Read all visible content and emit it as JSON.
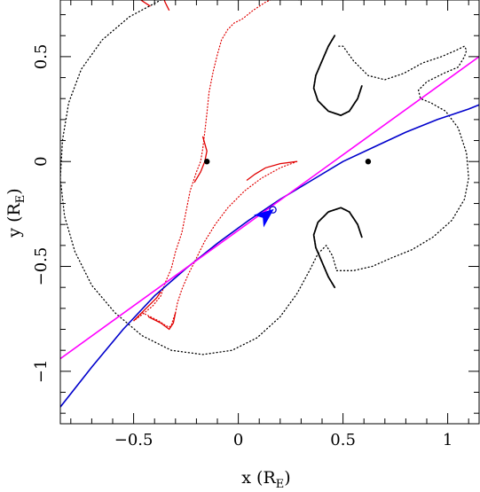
{
  "chart_data": {
    "type": "line",
    "xlabel": "x (R",
    "xlabel_sub": "E",
    "xlabel_close": ")",
    "ylabel": "y (R",
    "ylabel_sub": "E",
    "ylabel_close": ")",
    "xlim": [
      -0.85,
      1.15
    ],
    "ylim": [
      -1.25,
      0.77
    ],
    "xticks": [
      {
        "value": -0.5,
        "label": "−0.5"
      },
      {
        "value": 0,
        "label": "0"
      },
      {
        "value": 0.5,
        "label": "0.5"
      },
      {
        "value": 1,
        "label": "1"
      }
    ],
    "yticks": [
      {
        "value": 0.5,
        "label": "0.5"
      },
      {
        "value": 0,
        "label": "0"
      },
      {
        "value": -0.5,
        "label": "−0.5"
      },
      {
        "value": -1,
        "label": "−1"
      }
    ],
    "minor_x_step": 0.1,
    "minor_y_step": 0.1,
    "grid": false,
    "lenses": [
      {
        "x": -0.15,
        "y": 0.0
      },
      {
        "x": 0.62,
        "y": 0.0
      }
    ],
    "critical_curve": {
      "color": "#000000",
      "style": "dotted",
      "outer_x": [
        0.29,
        0.25,
        0.16,
        0.05,
        -0.08,
        -0.22,
        -0.37,
        -0.52,
        -0.65,
        -0.75,
        -0.81,
        -0.84,
        -0.85,
        -0.83,
        -0.78,
        -0.7,
        -0.59,
        -0.46,
        -0.32,
        -0.17,
        -0.03,
        0.09,
        0.2,
        0.28,
        0.34,
        0.38,
        0.42,
        0.45,
        0.47
      ],
      "outer_y": [
        0.77,
        0.79,
        0.82,
        0.84,
        0.84,
        0.82,
        0.77,
        0.69,
        0.58,
        0.44,
        0.28,
        0.1,
        -0.08,
        -0.26,
        -0.43,
        -0.59,
        -0.72,
        -0.83,
        -0.9,
        -0.92,
        -0.9,
        -0.84,
        -0.74,
        -0.63,
        -0.52,
        -0.44,
        -0.4,
        -0.45,
        -0.52
      ],
      "right_x": [
        0.47,
        0.55,
        0.64,
        0.73,
        0.83,
        0.93,
        1.02,
        1.08,
        1.1,
        1.09,
        1.05,
        0.99,
        0.92,
        0.87,
        0.86,
        0.9,
        0.98,
        1.05,
        1.08,
        1.09,
        1.08,
        1.04,
        0.97,
        0.88,
        0.79,
        0.7,
        0.62,
        0.55,
        0.5,
        0.47
      ],
      "right_y": [
        -0.52,
        -0.52,
        -0.5,
        -0.46,
        -0.42,
        -0.36,
        -0.28,
        -0.18,
        -0.08,
        0.04,
        0.16,
        0.24,
        0.28,
        0.3,
        0.34,
        0.38,
        0.42,
        0.45,
        0.5,
        0.53,
        0.55,
        0.53,
        0.5,
        0.47,
        0.42,
        0.39,
        0.41,
        0.48,
        0.55,
        0.55
      ],
      "upper_lobe_x": [
        0.46,
        0.43,
        0.4,
        0.37,
        0.36,
        0.38,
        0.43,
        0.49,
        0.53,
        0.57,
        0.59
      ],
      "upper_lobe_y": [
        0.6,
        0.55,
        0.48,
        0.41,
        0.35,
        0.29,
        0.24,
        0.22,
        0.24,
        0.3,
        0.36
      ],
      "lower_lobe_x": [
        0.46,
        0.43,
        0.4,
        0.37,
        0.36,
        0.38,
        0.43,
        0.49,
        0.53,
        0.57,
        0.59
      ],
      "lower_lobe_y": [
        -0.6,
        -0.55,
        -0.48,
        -0.41,
        -0.35,
        -0.29,
        -0.24,
        -0.22,
        -0.24,
        -0.3,
        -0.36
      ]
    },
    "caustic": {
      "color": "#e00000",
      "style": "dotted",
      "x": [
        0.28,
        0.2,
        0.11,
        0.03,
        -0.05,
        -0.11,
        -0.16,
        -0.2,
        -0.24,
        -0.27,
        -0.29,
        -0.3,
        -0.31,
        -0.32,
        -0.33,
        -0.35,
        -0.38,
        -0.42,
        -0.46,
        -0.5,
        -0.46,
        -0.41,
        -0.37,
        -0.35,
        -0.32,
        -0.3,
        -0.27,
        -0.25,
        -0.23,
        -0.2,
        -0.18,
        -0.17,
        -0.16,
        -0.15,
        -0.14,
        -0.12,
        -0.1,
        -0.08,
        -0.05,
        -0.02,
        0.02,
        0.07,
        0.13,
        0.2,
        0.28
      ],
      "y": [
        0.0,
        -0.03,
        -0.08,
        -0.14,
        -0.22,
        -0.3,
        -0.38,
        -0.46,
        -0.54,
        -0.61,
        -0.67,
        -0.72,
        -0.75,
        -0.78,
        -0.79,
        -0.78,
        -0.76,
        -0.74,
        -0.72,
        -0.76,
        -0.73,
        -0.69,
        -0.64,
        -0.58,
        -0.51,
        -0.43,
        -0.34,
        -0.24,
        -0.14,
        -0.05,
        0.0,
        0.06,
        0.14,
        0.23,
        0.33,
        0.43,
        0.51,
        0.58,
        0.63,
        0.66,
        0.68,
        0.72,
        0.76,
        0.79,
        0.79
      ]
    },
    "caustic_solid_segments": [
      {
        "x": [
          0.28,
          0.2,
          0.13,
          0.08,
          0.04
        ],
        "y": [
          0.0,
          -0.01,
          -0.03,
          -0.06,
          -0.09
        ]
      },
      {
        "x": [
          -0.43,
          -0.37,
          -0.33,
          -0.31,
          -0.3
        ],
        "y": [
          -0.74,
          -0.77,
          -0.8,
          -0.77,
          -0.72
        ]
      },
      {
        "x": [
          -0.5,
          -0.46,
          -0.42,
          -0.39,
          -0.37
        ],
        "y": [
          -0.76,
          -0.72,
          -0.68,
          -0.65,
          -0.62
        ]
      },
      {
        "x": [
          -0.48,
          -0.45,
          -0.42
        ],
        "y": [
          0.78,
          0.76,
          0.74
        ]
      },
      {
        "x": [
          -0.33,
          -0.35,
          -0.36
        ],
        "y": [
          0.72,
          0.76,
          0.79
        ]
      },
      {
        "x": [
          -0.17,
          -0.15,
          -0.16,
          -0.18,
          -0.21
        ],
        "y": [
          0.12,
          0.05,
          0.0,
          -0.05,
          -0.1
        ]
      }
    ],
    "series": [
      {
        "name": "",
        "color": "#0000cc",
        "x": [
          -0.85,
          -0.7,
          -0.55,
          -0.4,
          -0.25,
          -0.1,
          0.05,
          0.2,
          0.35,
          0.5,
          0.65,
          0.8,
          0.95,
          1.1,
          1.15
        ],
        "y": [
          -1.17,
          -0.98,
          -0.8,
          -0.64,
          -0.51,
          -0.39,
          -0.28,
          -0.18,
          -0.09,
          0.0,
          0.07,
          0.14,
          0.2,
          0.25,
          0.27
        ]
      },
      {
        "name": "",
        "color": "#ff00ff",
        "x": [
          -0.85,
          1.15
        ],
        "y": [
          -0.94,
          0.5
        ]
      }
    ],
    "source_marker": {
      "x": 0.165,
      "y": -0.23
    },
    "arrow": {
      "x": 0.14,
      "y": -0.25,
      "dx": 1.0,
      "dy": 0.8,
      "color": "#0000ff"
    }
  }
}
